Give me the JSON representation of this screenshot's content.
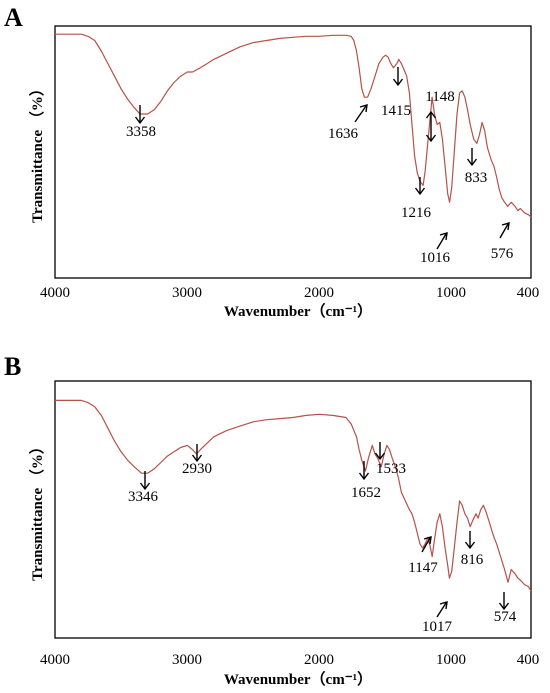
{
  "chart_data": [
    {
      "type": "line",
      "panel": "A",
      "xlabel": "Wavenumber（cm⁻¹）",
      "ylabel": "Transmittance （%）",
      "xlim": [
        4000,
        400
      ],
      "xticks": [
        "4000",
        "3000",
        "2000",
        "1000",
        "400"
      ],
      "color": "#b5524a",
      "series": [
        {
          "x": [
            4000,
            3900,
            3800,
            3750,
            3700,
            3650,
            3600,
            3550,
            3500,
            3450,
            3400,
            3358,
            3300,
            3250,
            3200,
            3150,
            3100,
            3050,
            3000,
            2960,
            2930,
            2900,
            2850,
            2800,
            2700,
            2600,
            2500,
            2400,
            2300,
            2200,
            2100,
            2000,
            1900,
            1800,
            1760,
            1740,
            1720,
            1700,
            1680,
            1660,
            1636,
            1610,
            1580,
            1550,
            1520,
            1500,
            1480,
            1460,
            1440,
            1415,
            1400,
            1380,
            1360,
            1340,
            1320,
            1300,
            1280,
            1260,
            1240,
            1216,
            1200,
            1180,
            1160,
            1148,
            1130,
            1110,
            1090,
            1070,
            1050,
            1030,
            1016,
            1000,
            980,
            960,
            940,
            920,
            900,
            880,
            860,
            833,
            810,
            790,
            770,
            750,
            730,
            700,
            680,
            660,
            640,
            620,
            600,
            576,
            550,
            520,
            500,
            480,
            450,
            420,
            400
          ],
          "y": [
            98,
            98,
            98,
            97,
            95,
            90,
            84,
            78,
            72,
            67,
            63,
            60,
            60,
            62,
            66,
            71,
            75,
            78,
            80,
            80,
            81,
            82,
            84,
            86,
            89,
            92,
            94,
            95,
            96,
            96.5,
            97,
            97,
            97.5,
            97.5,
            97,
            95,
            90,
            82,
            72,
            68,
            68,
            72,
            78,
            84,
            87,
            88,
            87,
            84,
            82,
            84,
            86,
            84,
            81,
            78,
            70,
            55,
            40,
            32,
            28,
            26,
            33,
            47,
            60,
            68,
            60,
            55,
            56,
            48,
            35,
            22,
            18,
            25,
            42,
            60,
            70,
            71,
            68,
            62,
            55,
            48,
            46,
            50,
            56,
            52,
            44,
            38,
            35,
            30,
            24,
            20,
            18,
            16,
            18,
            16,
            14,
            15,
            13,
            12,
            11
          ]
        }
      ],
      "peaks": [
        "3358",
        "1636",
        "1415",
        "1148",
        "1216",
        "833",
        "1016",
        "576"
      ]
    },
    {
      "type": "line",
      "panel": "B",
      "xlabel": "Wavenumber（cm⁻¹）",
      "ylabel": "Transmittance （%）",
      "xlim": [
        4000,
        400
      ],
      "xticks": [
        "4000",
        "3000",
        "2000",
        "1000",
        "400"
      ],
      "color": "#b5524a",
      "series": [
        {
          "x": [
            4000,
            3900,
            3800,
            3750,
            3700,
            3650,
            3600,
            3550,
            3500,
            3450,
            3400,
            3346,
            3300,
            3250,
            3200,
            3150,
            3100,
            3050,
            3000,
            2960,
            2930,
            2900,
            2850,
            2800,
            2700,
            2600,
            2500,
            2400,
            2300,
            2200,
            2100,
            2000,
            1900,
            1800,
            1760,
            1720,
            1700,
            1680,
            1652,
            1630,
            1600,
            1580,
            1560,
            1533,
            1510,
            1490,
            1470,
            1450,
            1420,
            1400,
            1380,
            1350,
            1320,
            1300,
            1280,
            1260,
            1240,
            1220,
            1200,
            1180,
            1160,
            1147,
            1130,
            1110,
            1090,
            1070,
            1050,
            1030,
            1017,
            1000,
            980,
            960,
            940,
            920,
            900,
            880,
            860,
            840,
            816,
            800,
            780,
            760,
            740,
            720,
            700,
            680,
            660,
            640,
            620,
            600,
            574,
            550,
            520,
            500,
            480,
            450,
            420,
            400
          ],
          "y": [
            97,
            97,
            97,
            96,
            94,
            90,
            84,
            78,
            73,
            69,
            66,
            63,
            63,
            65,
            68,
            71,
            73,
            75,
            76,
            74,
            72,
            74,
            77,
            80,
            83,
            85,
            87,
            88,
            88.5,
            89,
            90,
            90.5,
            90,
            89,
            86,
            80,
            74,
            69,
            64,
            70,
            76,
            72,
            70,
            66,
            72,
            76,
            74,
            70,
            65,
            60,
            54,
            50,
            46,
            44,
            40,
            35,
            30,
            28,
            30,
            33,
            28,
            24,
            32,
            40,
            44,
            38,
            28,
            20,
            14,
            17,
            28,
            40,
            50,
            48,
            44,
            42,
            38,
            41,
            44,
            42,
            46,
            48,
            45,
            41,
            37,
            33,
            30,
            26,
            22,
            18,
            12,
            18,
            16,
            14,
            13,
            11,
            10,
            8
          ]
        }
      ],
      "peaks": [
        "3346",
        "2930",
        "1652",
        "1533",
        "1147",
        "816",
        "1017",
        "574"
      ]
    }
  ]
}
